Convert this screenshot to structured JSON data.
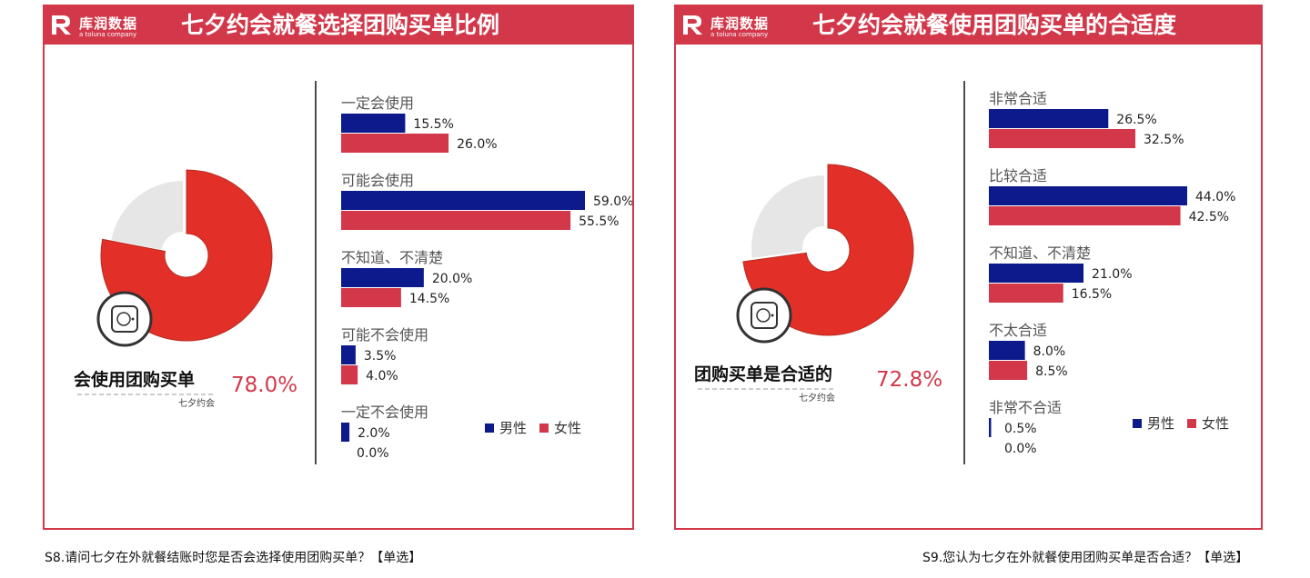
{
  "brand": {
    "name": "库润数据",
    "tagline": "a toluna company"
  },
  "colors": {
    "male": "#0c1a8c",
    "female": "#d2384a",
    "donut": "#e23028",
    "donut_rest": "#e6e6e6",
    "frame": "#d2384a"
  },
  "legend": {
    "male": "男性",
    "female": "女性"
  },
  "panels": [
    {
      "title": "七夕约会就餐选择团购买单比例",
      "footnote": "S8.请问七夕在外就餐结账时您是否会选择使用团购买单？【单选】",
      "donut": {
        "label": "会使用团购买单",
        "value_text": "78.0%",
        "value": 78.0,
        "sublabel": "七夕约会",
        "icon": "wallet-lock-icon"
      }
    },
    {
      "title": "七夕约会就餐使用团购买单的合适度",
      "footnote": "S9.您认为七夕在外就餐使用团购买单是否合适？【单选】",
      "donut": {
        "label": "团购买单是合适的",
        "value_text": "72.8%",
        "value": 72.8,
        "sublabel": "七夕约会",
        "icon": "wallet-lock-icon"
      }
    }
  ],
  "chart_data": [
    {
      "type": "bar",
      "orientation": "horizontal",
      "title": "七夕约会就餐选择团购买单比例",
      "categories": [
        "一定会使用",
        "可能会使用",
        "不知道、不清楚",
        "可能不会使用",
        "一定不会使用"
      ],
      "series": [
        {
          "name": "男性",
          "values": [
            15.5,
            59.0,
            20.0,
            3.5,
            2.0
          ],
          "labels": [
            "15.5%",
            "59.0%",
            "20.0%",
            "3.5%",
            "2.0%"
          ]
        },
        {
          "name": "女性",
          "values": [
            26.0,
            55.5,
            14.5,
            4.0,
            0.0
          ],
          "labels": [
            "26.0%",
            "55.5%",
            "14.5%",
            "4.0%",
            "0.0%"
          ]
        }
      ],
      "xlim": [
        0,
        59
      ],
      "grid": false,
      "legend_position": "bottom-right"
    },
    {
      "type": "bar",
      "orientation": "horizontal",
      "title": "七夕约会就餐使用团购买单的合适度",
      "categories": [
        "非常合适",
        "比较合适",
        "不知道、不清楚",
        "不太合适",
        "非常不合适"
      ],
      "series": [
        {
          "name": "男性",
          "values": [
            26.5,
            44.0,
            21.0,
            8.0,
            0.5
          ],
          "labels": [
            "26.5%",
            "44.0%",
            "21.0%",
            "8.0%",
            "0.5%"
          ]
        },
        {
          "name": "女性",
          "values": [
            32.5,
            42.5,
            16.5,
            8.5,
            0.0
          ],
          "labels": [
            "32.5%",
            "42.5%",
            "16.5%",
            "8.5%",
            "0.0%"
          ]
        }
      ],
      "xlim": [
        0,
        44
      ],
      "grid": false,
      "legend_position": "bottom-right"
    }
  ]
}
